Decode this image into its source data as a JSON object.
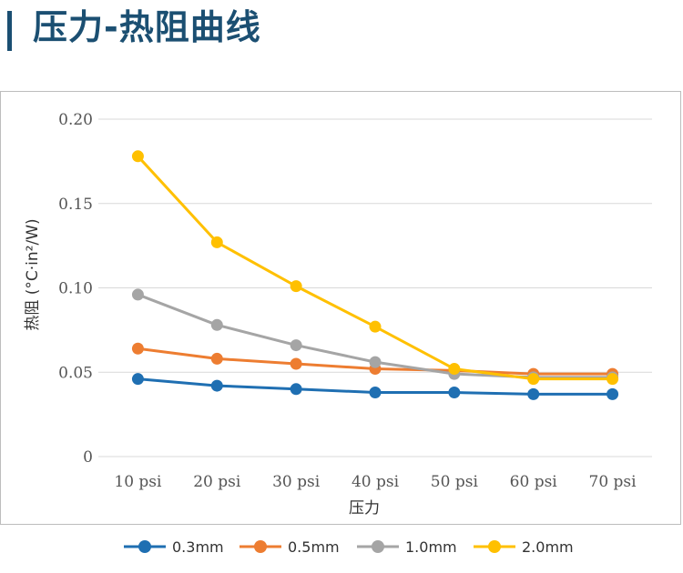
{
  "page": {
    "title": "压力-热阻曲线"
  },
  "colors": {
    "title": "#1b4f72",
    "grid": "#d9d9d9",
    "axis_text": "#555555"
  },
  "chart_data": {
    "type": "line",
    "title": "",
    "xlabel": "压力",
    "ylabel": "热阻 (°C·in²/W)",
    "categories": [
      "10 psi",
      "20 psi",
      "30 psi",
      "40 psi",
      "50 psi",
      "60 psi",
      "70 psi"
    ],
    "ylim": [
      0,
      0.2
    ],
    "yticks": [
      0,
      0.05,
      0.1,
      0.15,
      0.2
    ],
    "ytick_labels": [
      "0",
      "0.05",
      "0.10",
      "0.15",
      "0.20"
    ],
    "grid": true,
    "legend_position": "bottom",
    "series": [
      {
        "name": "0.3mm",
        "color": "#1f6fb2",
        "values": [
          0.046,
          0.042,
          0.04,
          0.038,
          0.038,
          0.037,
          0.037
        ]
      },
      {
        "name": "0.5mm",
        "color": "#ed7d31",
        "values": [
          0.064,
          0.058,
          0.055,
          0.052,
          0.051,
          0.049,
          0.049
        ]
      },
      {
        "name": "1.0mm",
        "color": "#a5a5a5",
        "values": [
          0.096,
          0.078,
          0.066,
          0.056,
          0.049,
          0.047,
          0.047
        ]
      },
      {
        "name": "2.0mm",
        "color": "#ffc000",
        "values": [
          0.178,
          0.127,
          0.101,
          0.077,
          0.052,
          0.046,
          0.046
        ]
      }
    ]
  }
}
